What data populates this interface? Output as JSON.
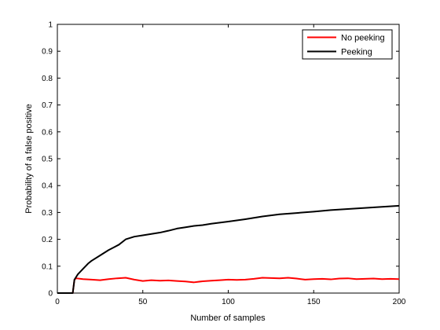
{
  "chart_data": {
    "type": "line",
    "xlabel": "Number of samples",
    "ylabel": "Probability of a false positive",
    "xlim": [
      0,
      200
    ],
    "ylim": [
      0,
      1
    ],
    "xticks": [
      0,
      50,
      100,
      150,
      200
    ],
    "yticks": [
      0,
      0.1,
      0.2,
      0.3,
      0.4,
      0.5,
      0.6,
      0.7,
      0.8,
      0.9,
      1
    ],
    "xtick_labels": [
      "0",
      "50",
      "100",
      "150",
      "200"
    ],
    "ytick_labels": [
      "0",
      "0.1",
      "0.2",
      "0.3",
      "0.4",
      "0.5",
      "0.6",
      "0.7",
      "0.8",
      "0.9",
      "1"
    ],
    "grid": false,
    "legend_position": "top-right",
    "series": [
      {
        "name": "No peeking",
        "color": "#ff0000",
        "x": [
          0,
          9,
          10,
          11,
          15,
          20,
          25,
          30,
          35,
          40,
          45,
          50,
          55,
          60,
          65,
          70,
          75,
          80,
          85,
          90,
          95,
          100,
          105,
          110,
          115,
          120,
          125,
          130,
          135,
          140,
          145,
          150,
          155,
          160,
          165,
          170,
          175,
          180,
          185,
          190,
          195,
          200
        ],
        "y": [
          0,
          0,
          0.05,
          0.055,
          0.052,
          0.05,
          0.048,
          0.052,
          0.055,
          0.057,
          0.05,
          0.045,
          0.048,
          0.046,
          0.047,
          0.045,
          0.043,
          0.04,
          0.044,
          0.046,
          0.048,
          0.05,
          0.049,
          0.05,
          0.053,
          0.057,
          0.056,
          0.055,
          0.057,
          0.054,
          0.05,
          0.052,
          0.053,
          0.051,
          0.054,
          0.055,
          0.052,
          0.053,
          0.054,
          0.052,
          0.053,
          0.052
        ]
      },
      {
        "name": "Peeking",
        "color": "#000000",
        "x": [
          0,
          9,
          10,
          12,
          15,
          18,
          20,
          25,
          30,
          33,
          36,
          40,
          45,
          50,
          55,
          60,
          65,
          70,
          75,
          80,
          85,
          90,
          95,
          100,
          110,
          120,
          130,
          140,
          150,
          160,
          170,
          180,
          190,
          200
        ],
        "y": [
          0,
          0,
          0.05,
          0.07,
          0.09,
          0.11,
          0.12,
          0.14,
          0.16,
          0.17,
          0.18,
          0.2,
          0.21,
          0.215,
          0.22,
          0.225,
          0.232,
          0.24,
          0.245,
          0.25,
          0.253,
          0.258,
          0.262,
          0.266,
          0.275,
          0.285,
          0.293,
          0.298,
          0.303,
          0.309,
          0.313,
          0.317,
          0.321,
          0.325
        ]
      }
    ]
  }
}
